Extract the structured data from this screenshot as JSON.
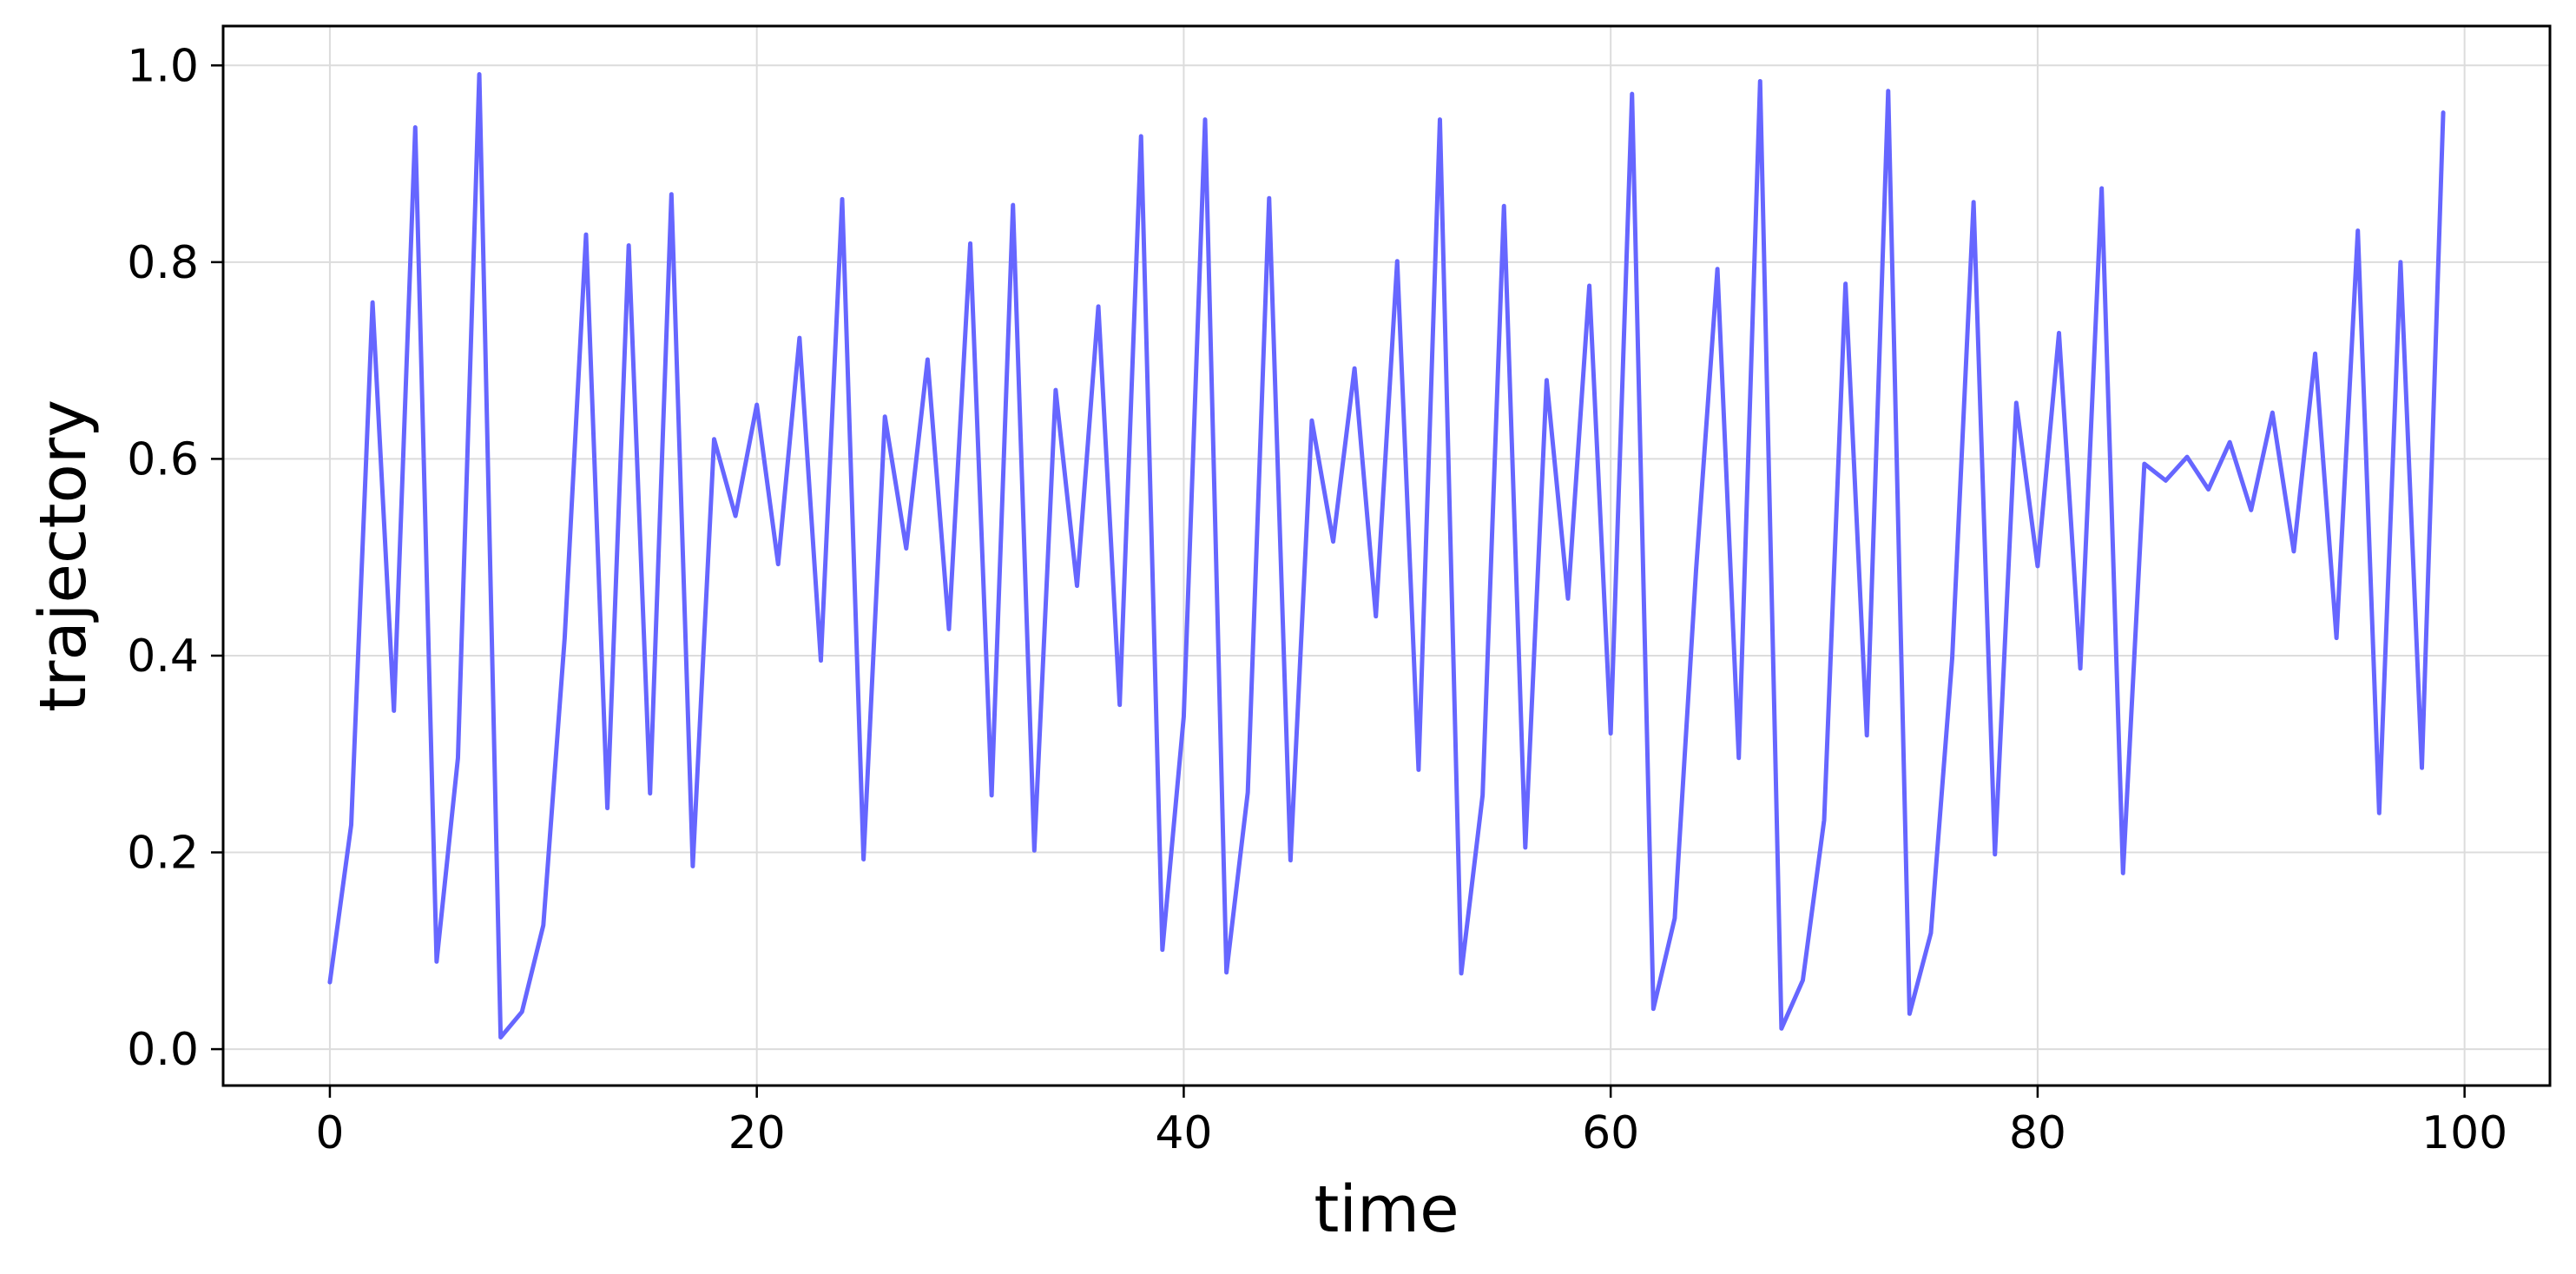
{
  "chart_data": {
    "type": "line",
    "title": "",
    "xlabel": "time",
    "ylabel": "trajectory",
    "xlim": [
      -5,
      104
    ],
    "ylim": [
      -0.037,
      1.04
    ],
    "x_ticks": [
      0,
      20,
      40,
      60,
      80,
      100
    ],
    "x_tick_labels": [
      "0",
      "20",
      "40",
      "60",
      "80",
      "100"
    ],
    "y_ticks": [
      0.0,
      0.2,
      0.4,
      0.6,
      0.8,
      1.0
    ],
    "y_tick_labels": [
      "0.0",
      "0.2",
      "0.4",
      "0.6",
      "0.8",
      "1.0"
    ],
    "grid": true,
    "line_color": "#6666ff",
    "series": [
      {
        "x_start": 0,
        "x_step": 1,
        "values": [
          0.068,
          0.228,
          0.759,
          0.344,
          0.937,
          0.089,
          0.296,
          0.991,
          0.012,
          0.038,
          0.126,
          0.418,
          0.828,
          0.245,
          0.817,
          0.26,
          0.869,
          0.186,
          0.62,
          0.542,
          0.655,
          0.493,
          0.723,
          0.395,
          0.864,
          0.193,
          0.643,
          0.509,
          0.701,
          0.427,
          0.819,
          0.258,
          0.858,
          0.202,
          0.67,
          0.471,
          0.755,
          0.35,
          0.928,
          0.101,
          0.338,
          0.945,
          0.078,
          0.261,
          0.865,
          0.192,
          0.639,
          0.516,
          0.692,
          0.44,
          0.801,
          0.284,
          0.945,
          0.077,
          0.258,
          0.857,
          0.205,
          0.68,
          0.458,
          0.776,
          0.321,
          0.971,
          0.041,
          0.133,
          0.487,
          0.793,
          0.296,
          0.984,
          0.021,
          0.07,
          0.233,
          0.778,
          0.319,
          0.974,
          0.036,
          0.118,
          0.398,
          0.861,
          0.198,
          0.657,
          0.491,
          0.728,
          0.387,
          0.875,
          0.179,
          0.595,
          0.578,
          0.602,
          0.569,
          0.617,
          0.548,
          0.647,
          0.506,
          0.707,
          0.418,
          0.832,
          0.24,
          0.8,
          0.286,
          0.952
        ]
      }
    ]
  }
}
